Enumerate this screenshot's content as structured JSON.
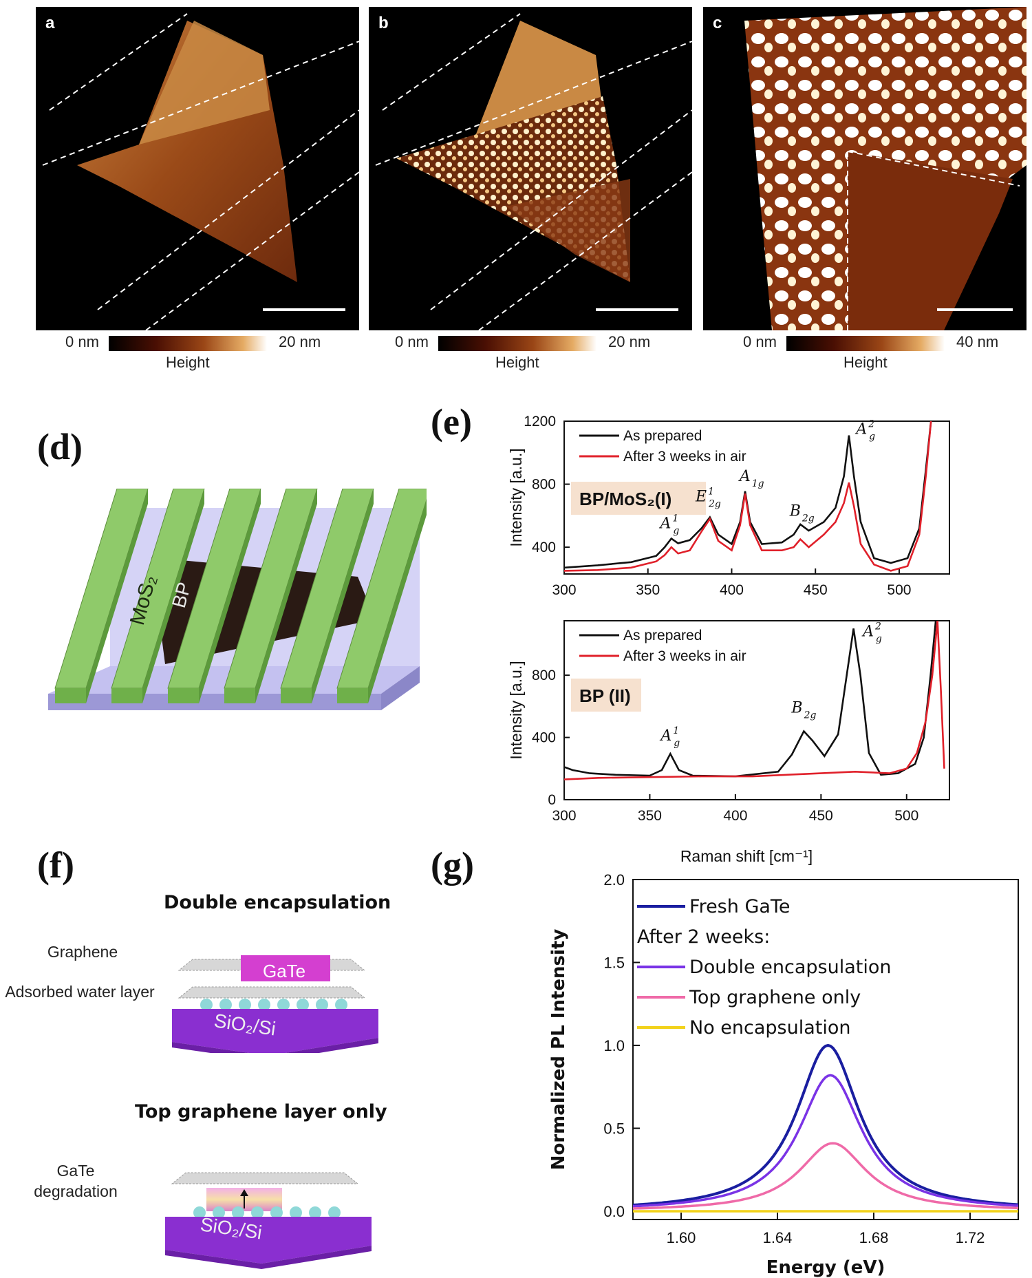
{
  "afm_panels": [
    {
      "letter": "a",
      "scale_min": "0 nm",
      "scale_max": "20 nm",
      "scale_title": "Height"
    },
    {
      "letter": "b",
      "scale_min": "0 nm",
      "scale_max": "20 nm",
      "scale_title": "Height"
    },
    {
      "letter": "c",
      "scale_min": "0 nm",
      "scale_max": "40 nm",
      "scale_title": "Height"
    }
  ],
  "colors": {
    "afm_dark": "#000000",
    "afm_mid": "#8a3a0e",
    "afm_bright": "#f2c27a",
    "green_electrode": "#8fca6a",
    "substrate": "#b7b4ee",
    "bp_flake": "#2a1a14",
    "as_prepared": "#111111",
    "after_air": "#e0202a",
    "fresh": "#1a1ea0",
    "double": "#7a33e6",
    "top_only": "#ef6aa8",
    "none": "#f2d21a",
    "sio2": "#8a2fd0",
    "gate": "#d43fd0",
    "water": "#8fd8d8"
  },
  "panel_d": {
    "letter": "(d)",
    "label_mos2": "MoS₂",
    "label_bp": "BP"
  },
  "panel_e": {
    "letter": "(e)",
    "x_title": "Raman shift [cm⁻¹]",
    "y_title": "Intensity [a.u.]",
    "legend": [
      "As prepared",
      "After 3 weeks in air"
    ],
    "peaks": {
      "a1g1": "A",
      "e2g": "E",
      "a1g": "A",
      "b2g": "B",
      "a2g": "A"
    }
  },
  "panel_f": {
    "letter": "(f)",
    "title_double": "Double encapsulation",
    "title_top": "Top graphene layer only",
    "label_graphene": "Graphene",
    "label_water": "Adsorbed water layer",
    "label_degradation": "GaTe degradation",
    "label_gate": "GaTe",
    "label_sio2": "SiO₂/Si"
  },
  "panel_g": {
    "letter": "(g)"
  },
  "chart_data": [
    {
      "type": "line",
      "panel": "e-top",
      "box_label": "BP/MoS₂(I)",
      "xlabel": "Raman shift [cm⁻¹]",
      "ylabel": "Intensity [a.u.]",
      "xlim": [
        300,
        530
      ],
      "ylim": [
        230,
        1200
      ],
      "xticks": [
        300,
        350,
        400,
        450,
        500
      ],
      "yticks": [
        400,
        800,
        1200
      ],
      "legend": "top-left",
      "peak_labels": [
        {
          "sym": "A",
          "sup": "1",
          "sub": "g",
          "x": 363,
          "y": 520
        },
        {
          "sym": "E",
          "sup": "1",
          "sub": "2g",
          "x": 386,
          "y": 690
        },
        {
          "sym": "A",
          "sup": "",
          "sub": "1g",
          "x": 412,
          "y": 820
        },
        {
          "sym": "B",
          "sup": "",
          "sub": "2g",
          "x": 442,
          "y": 600
        },
        {
          "sym": "A",
          "sup": "2",
          "sub": "g",
          "x": 480,
          "y": 1120
        }
      ],
      "series": [
        {
          "name": "As prepared",
          "color": "#111111",
          "x": [
            300,
            320,
            340,
            355,
            360,
            364,
            368,
            375,
            382,
            387,
            392,
            400,
            405,
            408,
            411,
            418,
            430,
            437,
            441,
            446,
            455,
            462,
            467,
            470,
            473,
            477,
            485,
            495,
            505,
            512,
            516,
            519
          ],
          "y": [
            270,
            285,
            305,
            345,
            400,
            455,
            425,
            445,
            520,
            590,
            480,
            420,
            560,
            755,
            560,
            420,
            430,
            480,
            545,
            505,
            560,
            650,
            850,
            1110,
            850,
            560,
            330,
            300,
            330,
            520,
            900,
            1200
          ]
        },
        {
          "name": "After 3 weeks in air",
          "color": "#e0202a",
          "x": [
            300,
            320,
            340,
            355,
            360,
            364,
            368,
            375,
            382,
            387,
            392,
            400,
            405,
            408,
            411,
            418,
            430,
            437,
            441,
            446,
            455,
            462,
            467,
            470,
            473,
            477,
            485,
            495,
            505,
            512,
            516,
            519
          ],
          "y": [
            250,
            255,
            270,
            310,
            350,
            400,
            360,
            380,
            500,
            580,
            440,
            380,
            540,
            740,
            540,
            380,
            380,
            400,
            450,
            400,
            480,
            560,
            680,
            810,
            660,
            420,
            290,
            250,
            280,
            480,
            860,
            1200
          ]
        }
      ]
    },
    {
      "type": "line",
      "panel": "e-bottom",
      "box_label": "BP (II)",
      "xlabel": "Raman shift [cm⁻¹]",
      "ylabel": "Intensity [a.u.]",
      "xlim": [
        300,
        525
      ],
      "ylim": [
        0,
        1150
      ],
      "xticks": [
        300,
        350,
        400,
        450,
        500
      ],
      "yticks": [
        0,
        400,
        800
      ],
      "legend": "top-left",
      "peak_labels": [
        {
          "sym": "A",
          "sup": "1",
          "sub": "g",
          "x": 362,
          "y": 380
        },
        {
          "sym": "B",
          "sup": "",
          "sub": "2g",
          "x": 440,
          "y": 560
        },
        {
          "sym": "A",
          "sup": "2",
          "sub": "g",
          "x": 480,
          "y": 1050
        }
      ],
      "series": [
        {
          "name": "As prepared",
          "color": "#111111",
          "x": [
            300,
            305,
            315,
            330,
            350,
            357,
            362,
            367,
            375,
            400,
            425,
            433,
            440,
            445,
            452,
            460,
            465,
            469,
            473,
            478,
            485,
            495,
            505,
            510,
            514,
            517
          ],
          "y": [
            210,
            190,
            170,
            160,
            155,
            190,
            295,
            190,
            155,
            150,
            180,
            290,
            440,
            380,
            280,
            420,
            800,
            1100,
            800,
            300,
            160,
            170,
            230,
            400,
            800,
            1150
          ]
        },
        {
          "name": "After 3 weeks in air",
          "color": "#e0202a",
          "x": [
            300,
            320,
            350,
            380,
            410,
            440,
            470,
            490,
            500,
            506,
            511,
            515,
            518,
            520,
            522
          ],
          "y": [
            130,
            140,
            145,
            150,
            150,
            165,
            180,
            170,
            200,
            300,
            500,
            800,
            1150,
            700,
            200
          ]
        }
      ]
    },
    {
      "type": "line",
      "panel": "g",
      "xlabel": "Energy (eV)",
      "ylabel": "Normalized PL Intensity",
      "xlim": [
        1.58,
        1.74
      ],
      "ylim": [
        -0.05,
        2.0
      ],
      "xticks": [
        1.6,
        1.64,
        1.68,
        1.72
      ],
      "yticks": [
        0.0,
        0.5,
        1.0,
        1.5,
        2.0
      ],
      "legend": "top-left",
      "legend_heading": "After 2 weeks:",
      "series": [
        {
          "name": "Fresh GaTe",
          "color": "#1a1ea0",
          "peak": 1.661,
          "amp": 1.0,
          "width": 0.016
        },
        {
          "name": "Double encapsulation",
          "color": "#7a33e6",
          "peak": 1.662,
          "amp": 0.82,
          "width": 0.016
        },
        {
          "name": "Top graphene only",
          "color": "#ef6aa8",
          "peak": 1.663,
          "amp": 0.41,
          "width": 0.017
        },
        {
          "name": "No encapsulation",
          "color": "#f2d21a",
          "peak": 1.66,
          "amp": 0.0,
          "width": 0.016
        }
      ]
    }
  ]
}
